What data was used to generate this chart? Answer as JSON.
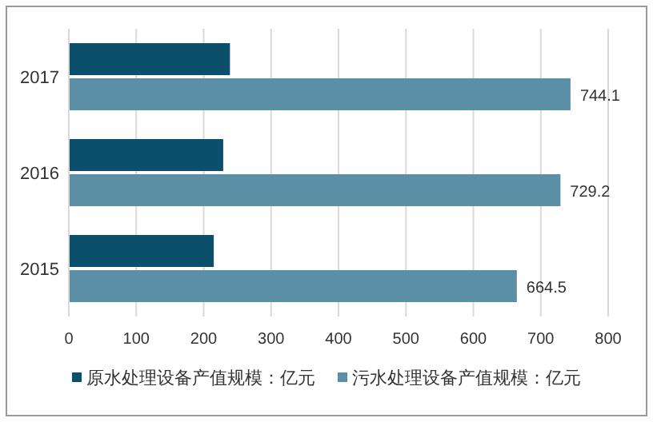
{
  "chart_data": {
    "type": "bar",
    "orientation": "horizontal",
    "categories": [
      "2017",
      "2016",
      "2015"
    ],
    "series": [
      {
        "name": "原水处理设备产值规模：亿元",
        "color": "#0b4f6c",
        "values": [
          239,
          229,
          215
        ]
      },
      {
        "name": "污水处理设备产值规模：亿元",
        "color": "#5b8fa6",
        "values": [
          744.1,
          729.2,
          664.5
        ],
        "value_labels": [
          "744.1",
          "729.2",
          "664.5"
        ]
      }
    ],
    "xlim": [
      0,
      800
    ],
    "xticks": [
      0,
      100,
      200,
      300,
      400,
      500,
      600,
      700,
      800
    ],
    "grid": "x",
    "legend": "bottom"
  }
}
